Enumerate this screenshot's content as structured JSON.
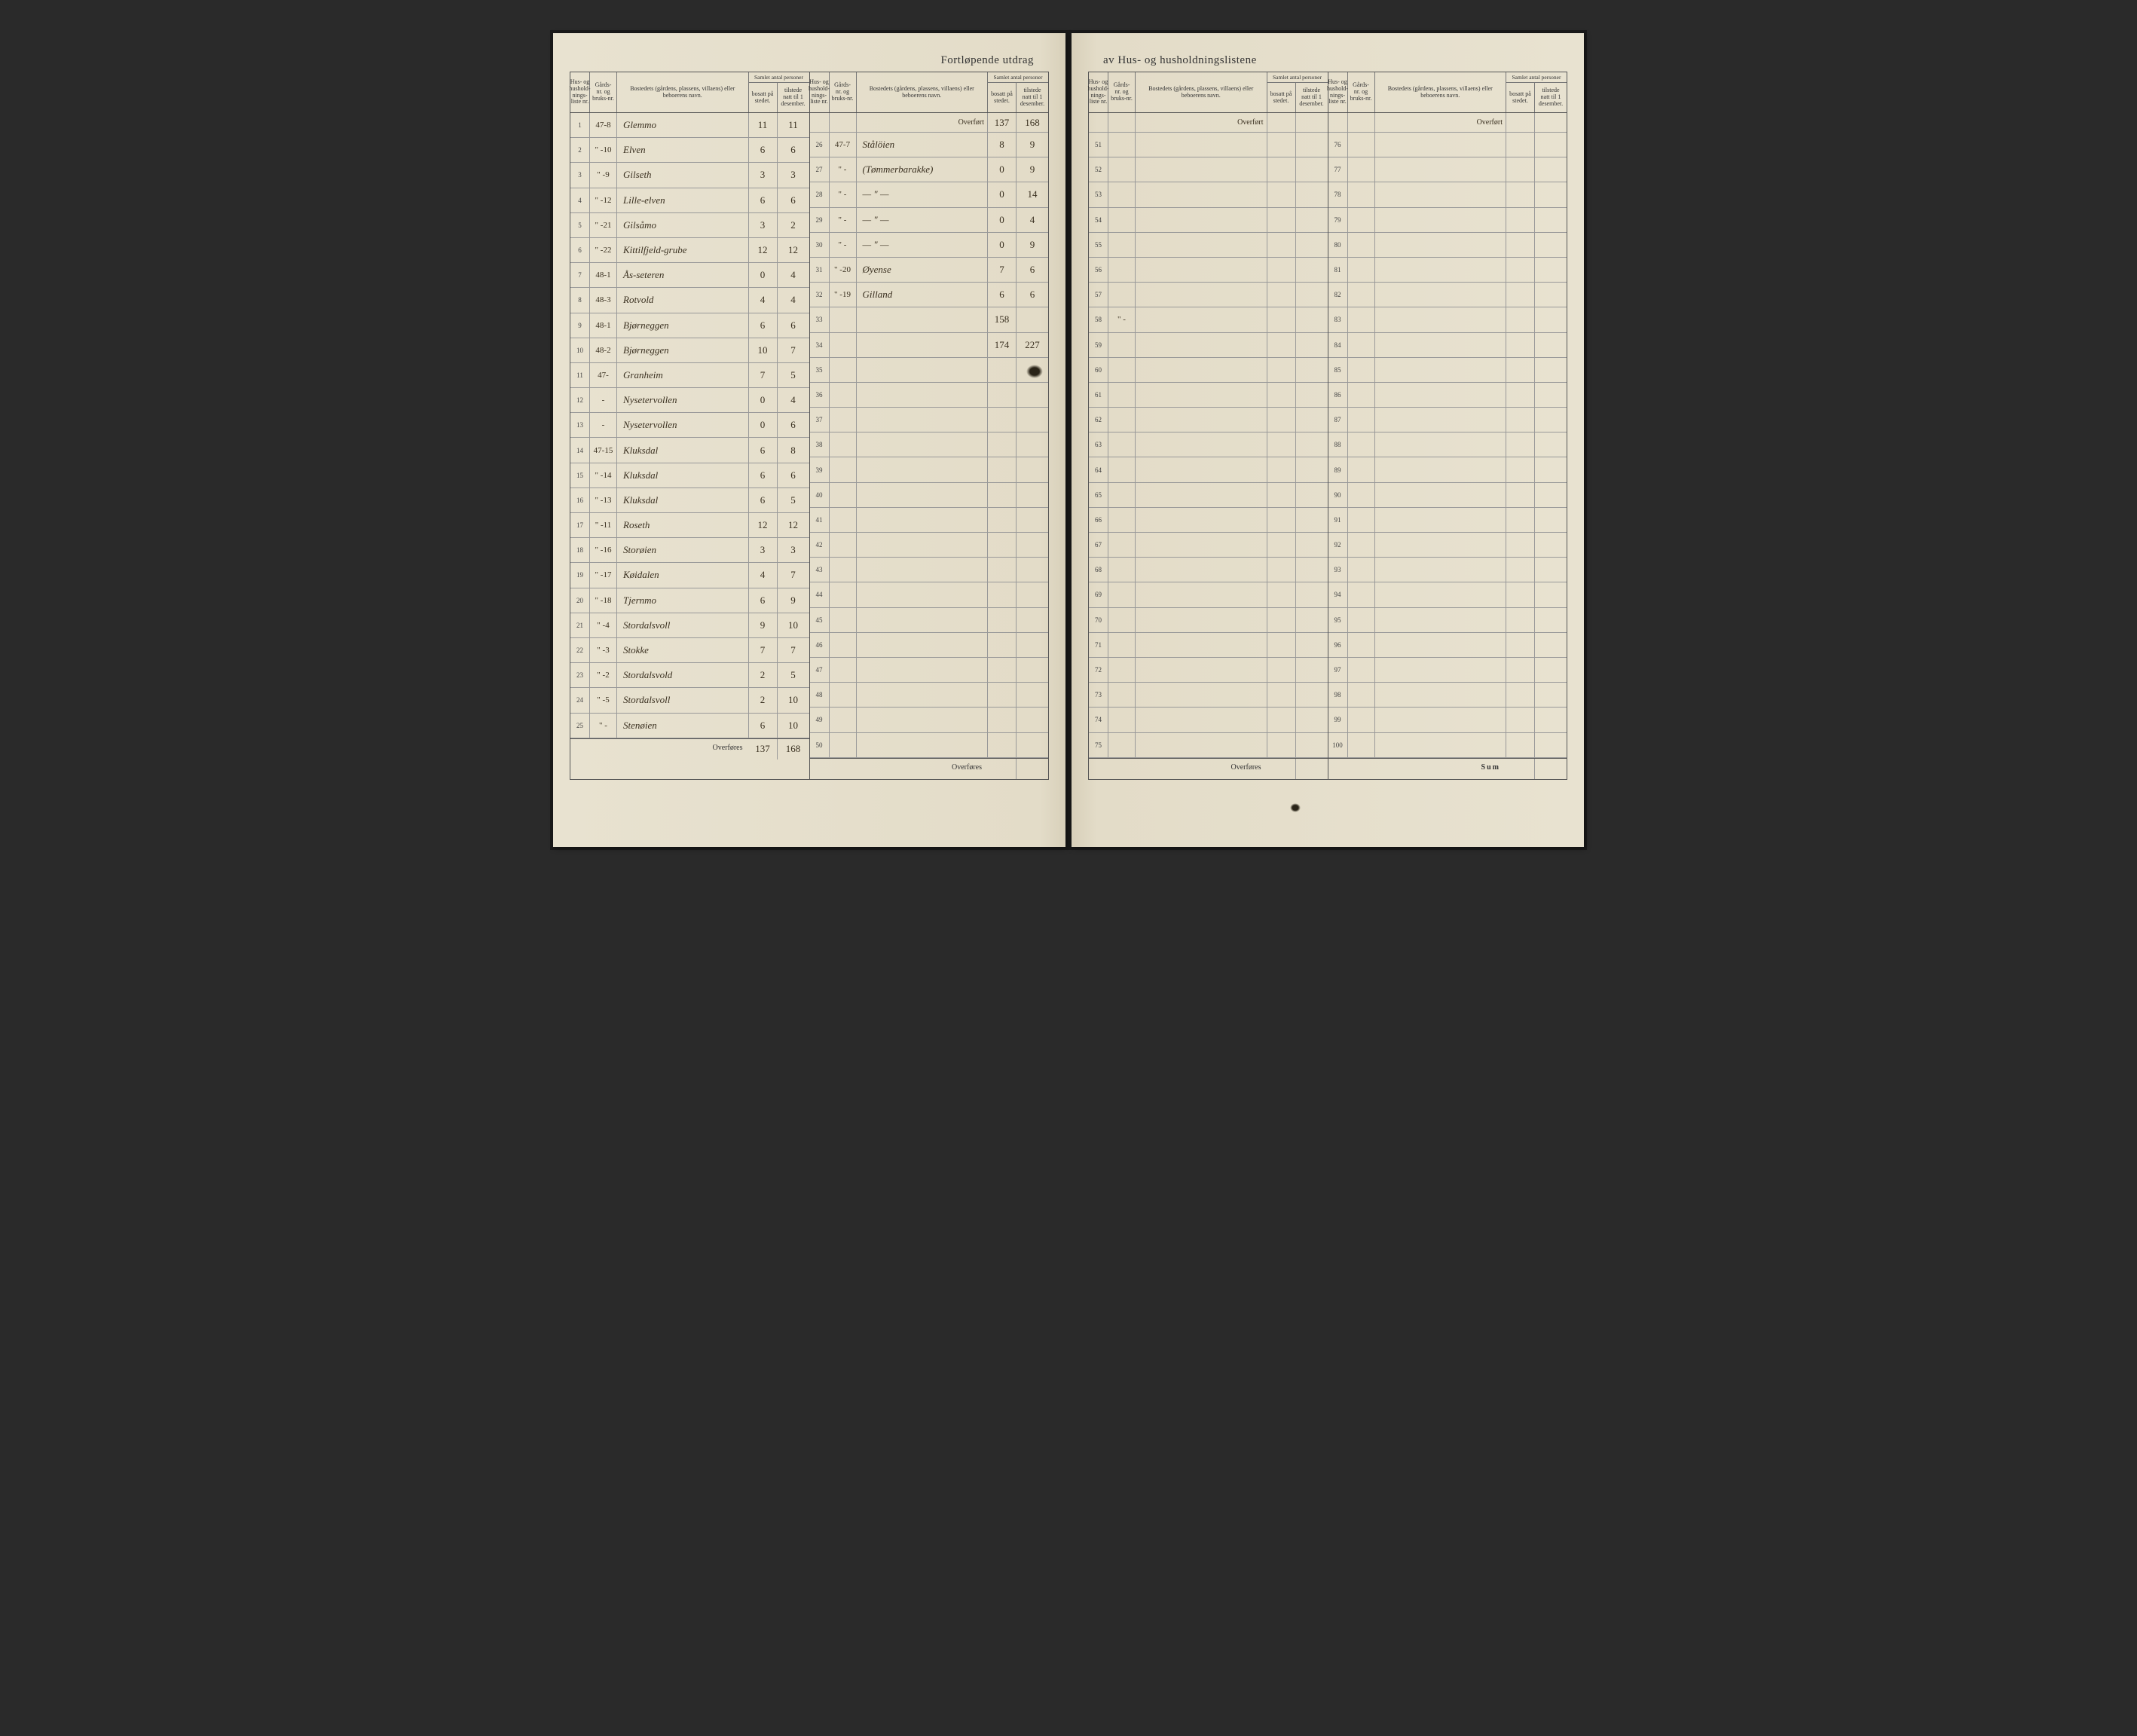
{
  "title_left": "Fortløpende utdrag",
  "title_right": "av Hus- og husholdningslistene",
  "headers": {
    "hus_nr": "Hus- og hushold-nings-liste nr.",
    "gards_nr": "Gårds-nr. og bruks-nr.",
    "bosted": "Bostedets (gårdens, plassens, villaens) eller beboerens navn.",
    "samlet": "Samlet antal personer",
    "bosatt": "bosatt på stedet.",
    "tilstede": "tilstede natt til 1 desember."
  },
  "overfort_label": "Overført",
  "overfores_label": "Overføres",
  "sum_label": "Sum",
  "left_col1": [
    {
      "nr": "1",
      "gnr": "47-8",
      "name": "Glemmo",
      "b": "11",
      "t": "11"
    },
    {
      "nr": "2",
      "gnr": "\" -10",
      "name": "Elven",
      "b": "6",
      "t": "6"
    },
    {
      "nr": "3",
      "gnr": "\" -9",
      "name": "Gilseth",
      "b": "3",
      "t": "3"
    },
    {
      "nr": "4",
      "gnr": "\" -12",
      "name": "Lille-elven",
      "b": "6",
      "t": "6"
    },
    {
      "nr": "5",
      "gnr": "\" -21",
      "name": "Gilsåmo",
      "b": "3",
      "t": "2"
    },
    {
      "nr": "6",
      "gnr": "\" -22",
      "name": "Kittilfjeld-grube",
      "b": "12",
      "t": "12"
    },
    {
      "nr": "7",
      "gnr": "48-1",
      "name": "Ås-seteren",
      "b": "0",
      "t": "4"
    },
    {
      "nr": "8",
      "gnr": "48-3",
      "name": "Rotvold",
      "b": "4",
      "t": "4"
    },
    {
      "nr": "9",
      "gnr": "48-1",
      "name": "Bjørneggen",
      "b": "6",
      "t": "6"
    },
    {
      "nr": "10",
      "gnr": "48-2",
      "name": "Bjørneggen",
      "b": "10",
      "t": "7"
    },
    {
      "nr": "11",
      "gnr": "47-",
      "name": "Granheim",
      "b": "7",
      "t": "5"
    },
    {
      "nr": "12",
      "gnr": "-",
      "name": "Nysetervollen",
      "b": "0",
      "t": "4"
    },
    {
      "nr": "13",
      "gnr": "-",
      "name": "Nysetervollen",
      "b": "0",
      "t": "6"
    },
    {
      "nr": "14",
      "gnr": "47-15",
      "name": "Kluksdal",
      "b": "6",
      "t": "8"
    },
    {
      "nr": "15",
      "gnr": "\" -14",
      "name": "Kluksdal",
      "b": "6",
      "t": "6"
    },
    {
      "nr": "16",
      "gnr": "\" -13",
      "name": "Kluksdal",
      "b": "6",
      "t": "5"
    },
    {
      "nr": "17",
      "gnr": "\" -11",
      "name": "Roseth",
      "b": "12",
      "t": "12"
    },
    {
      "nr": "18",
      "gnr": "\" -16",
      "name": "Storøien",
      "b": "3",
      "t": "3"
    },
    {
      "nr": "19",
      "gnr": "\" -17",
      "name": "Køidalen",
      "b": "4",
      "t": "7"
    },
    {
      "nr": "20",
      "gnr": "\" -18",
      "name": "Tjernmo",
      "b": "6",
      "t": "9"
    },
    {
      "nr": "21",
      "gnr": "\" -4",
      "name": "Stordalsvoll",
      "b": "9",
      "t": "10"
    },
    {
      "nr": "22",
      "gnr": "\" -3",
      "name": "Stokke",
      "b": "7",
      "t": "7"
    },
    {
      "nr": "23",
      "gnr": "\" -2",
      "name": "Stordalsvold",
      "b": "2",
      "t": "5"
    },
    {
      "nr": "24",
      "gnr": "\" -5",
      "name": "Stordalsvoll",
      "b": "2",
      "t": "10"
    },
    {
      "nr": "25",
      "gnr": "\" -",
      "name": "Stenøien",
      "b": "6",
      "t": "10"
    }
  ],
  "left_col1_foot": {
    "b": "137",
    "t": "168"
  },
  "left_col2_overfort": {
    "b": "137",
    "t": "168"
  },
  "left_col2": [
    {
      "nr": "26",
      "gnr": "47-7",
      "name": "Stålöien",
      "b": "8",
      "t": "9"
    },
    {
      "nr": "27",
      "gnr": "\" -",
      "name": "(Tømmerbarakke)",
      "b": "0",
      "t": "9"
    },
    {
      "nr": "28",
      "gnr": "\" -",
      "name": "— \" —",
      "b": "0",
      "t": "14"
    },
    {
      "nr": "29",
      "gnr": "\" -",
      "name": "— \" —",
      "b": "0",
      "t": "4"
    },
    {
      "nr": "30",
      "gnr": "\" -",
      "name": "— \" —",
      "b": "0",
      "t": "9"
    },
    {
      "nr": "31",
      "gnr": "\" -20",
      "name": "Øyense",
      "b": "7",
      "t": "6"
    },
    {
      "nr": "32",
      "gnr": "\" -19",
      "name": "Gilland",
      "b": "6",
      "t": "6"
    },
    {
      "nr": "33",
      "gnr": "",
      "name": "",
      "b": "158",
      "t": ""
    },
    {
      "nr": "34",
      "gnr": "",
      "name": "",
      "b": "174",
      "t": "227"
    },
    {
      "nr": "35",
      "gnr": "",
      "name": "",
      "b": "",
      "t": ""
    },
    {
      "nr": "36",
      "gnr": "",
      "name": "",
      "b": "",
      "t": ""
    },
    {
      "nr": "37",
      "gnr": "",
      "name": "",
      "b": "",
      "t": ""
    },
    {
      "nr": "38",
      "gnr": "",
      "name": "",
      "b": "",
      "t": ""
    },
    {
      "nr": "39",
      "gnr": "",
      "name": "",
      "b": "",
      "t": ""
    },
    {
      "nr": "40",
      "gnr": "",
      "name": "",
      "b": "",
      "t": ""
    },
    {
      "nr": "41",
      "gnr": "",
      "name": "",
      "b": "",
      "t": ""
    },
    {
      "nr": "42",
      "gnr": "",
      "name": "",
      "b": "",
      "t": ""
    },
    {
      "nr": "43",
      "gnr": "",
      "name": "",
      "b": "",
      "t": ""
    },
    {
      "nr": "44",
      "gnr": "",
      "name": "",
      "b": "",
      "t": ""
    },
    {
      "nr": "45",
      "gnr": "",
      "name": "",
      "b": "",
      "t": ""
    },
    {
      "nr": "46",
      "gnr": "",
      "name": "",
      "b": "",
      "t": ""
    },
    {
      "nr": "47",
      "gnr": "",
      "name": "",
      "b": "",
      "t": ""
    },
    {
      "nr": "48",
      "gnr": "",
      "name": "",
      "b": "",
      "t": ""
    },
    {
      "nr": "49",
      "gnr": "",
      "name": "",
      "b": "",
      "t": ""
    },
    {
      "nr": "50",
      "gnr": "",
      "name": "",
      "b": "",
      "t": ""
    }
  ],
  "right_col1_nrs": [
    "51",
    "52",
    "53",
    "54",
    "55",
    "56",
    "57",
    "58",
    "59",
    "60",
    "61",
    "62",
    "63",
    "64",
    "65",
    "66",
    "67",
    "68",
    "69",
    "70",
    "71",
    "72",
    "73",
    "74",
    "75"
  ],
  "right_col2_nrs": [
    "76",
    "77",
    "78",
    "79",
    "80",
    "81",
    "82",
    "83",
    "84",
    "85",
    "86",
    "87",
    "88",
    "89",
    "90",
    "91",
    "92",
    "93",
    "94",
    "95",
    "96",
    "97",
    "98",
    "99",
    "100"
  ],
  "right_row58_gnr": "\" -"
}
